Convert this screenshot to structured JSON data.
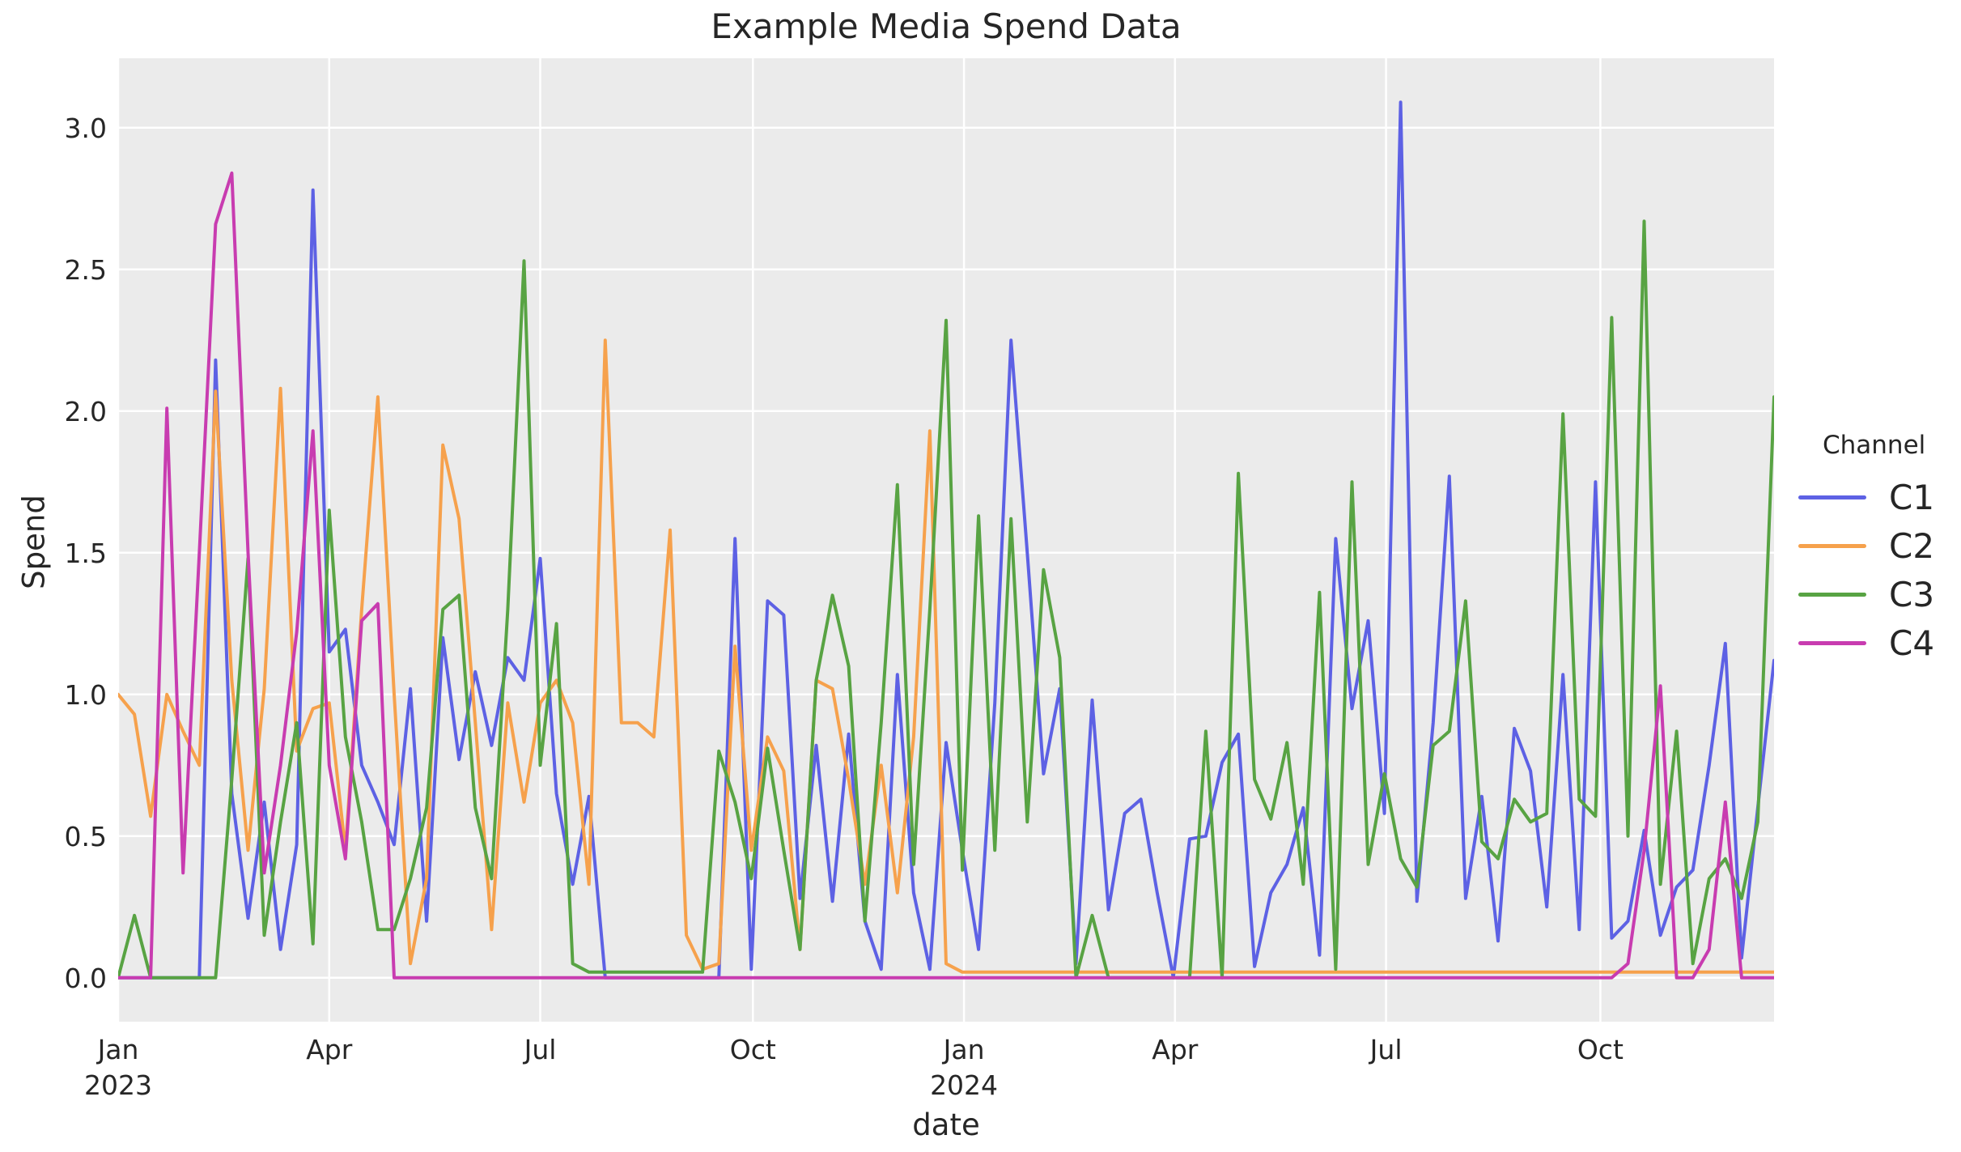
{
  "chart_data": {
    "type": "line",
    "title": "Example Media Spend Data",
    "xlabel": "date",
    "ylabel": "Spend",
    "x_unit": "weekly dates, Jan 2023 through Dec 2024",
    "xlim": [
      0,
      102
    ],
    "ylim": [
      -0.155,
      3.245
    ],
    "grid": true,
    "figure_bg": "#FFFFFF",
    "plot_bg": "#EBEBEB",
    "grid_color": "#FFFFFF",
    "text_color": "#262626",
    "y_ticks": [
      {
        "value": 0.0,
        "label": "0.0"
      },
      {
        "value": 0.5,
        "label": "0.5"
      },
      {
        "value": 1.0,
        "label": "1.0"
      },
      {
        "value": 1.5,
        "label": "1.5"
      },
      {
        "value": 2.0,
        "label": "2.0"
      },
      {
        "value": 2.5,
        "label": "2.5"
      },
      {
        "value": 3.0,
        "label": "3.0"
      }
    ],
    "x_ticks": [
      {
        "pos": 0,
        "label": "Jan",
        "sublabel": "2023"
      },
      {
        "pos": 13,
        "label": "Apr",
        "sublabel": ""
      },
      {
        "pos": 26,
        "label": "Jul",
        "sublabel": ""
      },
      {
        "pos": 39.1,
        "label": "Oct",
        "sublabel": ""
      },
      {
        "pos": 52.1,
        "label": "Jan",
        "sublabel": "2024"
      },
      {
        "pos": 65.1,
        "label": "Apr",
        "sublabel": ""
      },
      {
        "pos": 78.1,
        "label": "Jul",
        "sublabel": ""
      },
      {
        "pos": 91.3,
        "label": "Oct",
        "sublabel": ""
      }
    ],
    "legend": {
      "title": "Channel",
      "position": "right"
    },
    "series": [
      {
        "name": "C1",
        "color": "#5D61E4",
        "values": [
          0,
          0,
          0,
          0,
          0,
          0,
          2.18,
          0.65,
          0.21,
          0.62,
          0.1,
          0.47,
          2.78,
          1.15,
          1.23,
          0.75,
          0.62,
          0.47,
          1.02,
          0.2,
          1.2,
          0.77,
          1.08,
          0.82,
          1.13,
          1.05,
          1.48,
          0.65,
          0.33,
          0.64,
          0,
          0,
          0,
          0,
          0,
          0,
          0,
          0,
          1.55,
          0.03,
          1.33,
          1.28,
          0.28,
          0.82,
          0.27,
          0.86,
          0.2,
          0.03,
          1.07,
          0.3,
          0.03,
          0.83,
          0.45,
          0.1,
          0.97,
          2.25,
          1.5,
          0.72,
          1.02,
          0.05,
          0.98,
          0.24,
          0.58,
          0.63,
          0.3,
          0,
          0.49,
          0.5,
          0.76,
          0.86,
          0.04,
          0.3,
          0.4,
          0.6,
          0.08,
          1.55,
          0.95,
          1.26,
          0.58,
          3.09,
          0.27,
          0.9,
          1.77,
          0.28,
          0.64,
          0.13,
          0.88,
          0.73,
          0.25,
          1.07,
          0.17,
          1.75,
          0.14,
          0.2,
          0.52,
          0.15,
          0.32,
          0.38,
          0.75,
          1.18,
          0.07,
          0.6,
          1.12
        ]
      },
      {
        "name": "C2",
        "color": "#F6A14C",
        "values": [
          1.0,
          0.93,
          0.57,
          1.0,
          0.87,
          0.75,
          2.07,
          1.05,
          0.45,
          1.02,
          2.08,
          0.8,
          0.95,
          0.97,
          0.45,
          1.3,
          2.05,
          1.0,
          0.05,
          0.35,
          1.88,
          1.62,
          0.9,
          0.17,
          0.97,
          0.62,
          0.97,
          1.05,
          0.9,
          0.33,
          2.25,
          0.9,
          0.9,
          0.85,
          1.58,
          0.15,
          0.03,
          0.05,
          1.17,
          0.45,
          0.85,
          0.73,
          0.1,
          1.05,
          1.02,
          0.7,
          0.33,
          0.75,
          0.3,
          0.85,
          1.93,
          0.05,
          0.02,
          0.02,
          0.02,
          0.02,
          0.02,
          0.02,
          0.02,
          0.02,
          0.02,
          0.02,
          0.02,
          0.02,
          0.02,
          0.02,
          0.02,
          0.02,
          0.02,
          0.02,
          0.02,
          0.02,
          0.02,
          0.02,
          0.02,
          0.02,
          0.02,
          0.02,
          0.02,
          0.02,
          0.02,
          0.02,
          0.02,
          0.02,
          0.02,
          0.02,
          0.02,
          0.02,
          0.02,
          0.02,
          0.02,
          0.02,
          0.02,
          0.02,
          0.02,
          0.02,
          0.02,
          0.02,
          0.02,
          0.02,
          0.02,
          0.02,
          0.02
        ]
      },
      {
        "name": "C3",
        "color": "#58A343",
        "values": [
          0,
          0.22,
          0,
          0,
          0,
          0,
          0,
          0.7,
          1.48,
          0.15,
          0.55,
          0.9,
          0.12,
          1.65,
          0.85,
          0.55,
          0.17,
          0.17,
          0.35,
          0.6,
          1.3,
          1.35,
          0.6,
          0.35,
          1.3,
          2.53,
          0.75,
          1.25,
          0.05,
          0.02,
          0.02,
          0.02,
          0.02,
          0.02,
          0.02,
          0.02,
          0.02,
          0.8,
          0.62,
          0.35,
          0.81,
          0.45,
          0.1,
          1.05,
          1.35,
          1.1,
          0.2,
          0.9,
          1.74,
          0.4,
          1.3,
          2.32,
          0.38,
          1.63,
          0.45,
          1.62,
          0.55,
          1.44,
          1.13,
          0,
          0.22,
          0,
          0,
          0,
          0,
          0,
          0,
          0.87,
          0,
          1.78,
          0.7,
          0.56,
          0.83,
          0.33,
          1.36,
          0.03,
          1.75,
          0.4,
          0.72,
          0.42,
          0.32,
          0.82,
          0.87,
          1.33,
          0.48,
          0.42,
          0.63,
          0.55,
          0.58,
          1.99,
          0.63,
          0.57,
          2.33,
          0.5,
          2.67,
          0.33,
          0.87,
          0.05,
          0.35,
          0.42,
          0.28,
          0.55,
          2.05
        ]
      },
      {
        "name": "C4",
        "color": "#C83CB0",
        "values": [
          0,
          0,
          0,
          2.01,
          0.37,
          1.5,
          2.66,
          2.84,
          1.5,
          0.37,
          0.75,
          1.22,
          1.93,
          0.75,
          0.42,
          1.26,
          1.32,
          0,
          0,
          0,
          0,
          0,
          0,
          0,
          0,
          0,
          0,
          0,
          0,
          0,
          0,
          0,
          0,
          0,
          0,
          0,
          0,
          0,
          0,
          0,
          0,
          0,
          0,
          0,
          0,
          0,
          0,
          0,
          0,
          0,
          0,
          0,
          0,
          0,
          0,
          0,
          0,
          0,
          0,
          0,
          0,
          0,
          0,
          0,
          0,
          0,
          0,
          0,
          0,
          0,
          0,
          0,
          0,
          0,
          0,
          0,
          0,
          0,
          0,
          0,
          0,
          0,
          0,
          0,
          0,
          0,
          0,
          0,
          0,
          0,
          0,
          0,
          0,
          0.05,
          0.45,
          1.03,
          0,
          0,
          0.1,
          0.62,
          0,
          0,
          0
        ]
      }
    ]
  }
}
